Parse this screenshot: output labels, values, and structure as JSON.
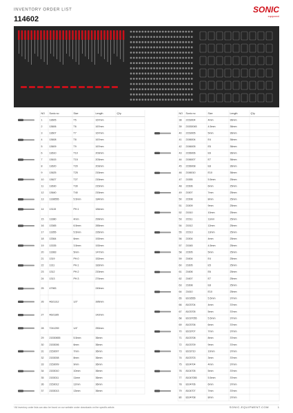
{
  "header": {
    "title": "INVENTORY ORDER LIST",
    "code": "114602",
    "logo": {
      "brand": "SONIC",
      "tagline": "equipment"
    }
  },
  "table": {
    "columns": [
      "NO",
      "Sonic no",
      "Size",
      "Length",
      "Q'ty"
    ],
    "rows": [
      {
        "no": 1,
        "sonic": "13605",
        "size": "T5",
        "length": "167mm"
      },
      {
        "no": 2,
        "sonic": "13606",
        "size": "T6",
        "length": "167mm"
      },
      {
        "no": 3,
        "sonic": "13607",
        "size": "T7",
        "length": "167mm"
      },
      {
        "no": 4,
        "sonic": "13608",
        "size": "T8",
        "length": "167mm"
      },
      {
        "no": 5,
        "sonic": "13609",
        "size": "T9",
        "length": "167mm"
      },
      {
        "no": 6,
        "sonic": "13610",
        "size": "T10",
        "length": "203mm"
      },
      {
        "no": 7,
        "sonic": "13615",
        "size": "T15",
        "length": "203mm"
      },
      {
        "no": 8,
        "sonic": "13620",
        "size": "T20",
        "length": "203mm"
      },
      {
        "no": 9,
        "sonic": "13625",
        "size": "T25",
        "length": "215mm"
      },
      {
        "no": 10,
        "sonic": "13627",
        "size": "T27",
        "length": "215mm"
      },
      {
        "no": 11,
        "sonic": "13630",
        "size": "T30",
        "length": "215mm"
      },
      {
        "no": 12,
        "sonic": "13640",
        "size": "T40",
        "length": "215mm"
      },
      {
        "no": 13,
        "sonic": "1338555",
        "size": "5.5mm",
        "length": "184mm"
      },
      {
        "no": 14,
        "sonic": "13115",
        "size": "PH.1",
        "length": "184mm"
      },
      {
        "no": 15,
        "sonic": "13380",
        "size": "4mm",
        "length": "299mm"
      },
      {
        "no": 16,
        "sonic": "13365",
        "size": "6.5mm",
        "length": "265mm"
      },
      {
        "no": 17,
        "sonic": "13355",
        "size": "5.5mm",
        "length": "226mm"
      },
      {
        "no": 18,
        "sonic": "13364",
        "size": "6mm",
        "length": "192mm"
      },
      {
        "no": 19,
        "sonic": "13335",
        "size": "3.5mm",
        "length": "192mm"
      },
      {
        "no": 20,
        "sonic": "13383",
        "size": "5mm",
        "length": "147mm"
      },
      {
        "no": 21,
        "sonic": "1319",
        "size": "PH.0",
        "length": "152mm"
      },
      {
        "no": 22,
        "sonic": "1311",
        "size": "PH.1",
        "length": "183mm"
      },
      {
        "no": 23,
        "sonic": "1312",
        "size": "PH.2",
        "length": "215mm"
      },
      {
        "no": 24,
        "sonic": "1313",
        "size": "PH.3",
        "length": "274mm"
      },
      {
        "no": 25,
        "sonic": "47983",
        "length": "249mm"
      },
      {
        "no": 26,
        "sonic": "4621312",
        "size": "1/2\"",
        "length": "395mm"
      },
      {
        "no": 27,
        "sonic": "4621165",
        "length": "142mm"
      },
      {
        "no": 28,
        "sonic": "7241259",
        "size": "1/4\"",
        "length": "250mm"
      },
      {
        "no": 29,
        "sonic": "21530655",
        "size": "5.5mm",
        "length": "36mm"
      },
      {
        "no": 30,
        "sonic": "2153006",
        "size": "6mm",
        "length": "36mm"
      },
      {
        "no": 31,
        "sonic": "2153007",
        "size": "7mm",
        "length": "36mm"
      },
      {
        "no": 32,
        "sonic": "2153008",
        "size": "8mm",
        "length": "36mm"
      },
      {
        "no": 33,
        "sonic": "2153009",
        "size": "9mm",
        "length": "36mm"
      },
      {
        "no": 34,
        "sonic": "2153010",
        "size": "10mm",
        "length": "36mm"
      },
      {
        "no": 35,
        "sonic": "2153011",
        "size": "11mm",
        "length": "36mm"
      },
      {
        "no": 36,
        "sonic": "2153012",
        "size": "12mm",
        "length": "36mm"
      },
      {
        "no": 37,
        "sonic": "2153013",
        "size": "13mm",
        "length": "36mm"
      },
      {
        "no": 38,
        "sonic": "2153004",
        "size": "4mm",
        "length": "36mm"
      },
      {
        "no": 39,
        "sonic": "21530045",
        "size": "4.5mm",
        "length": "36mm"
      },
      {
        "no": 40,
        "sonic": "2153005",
        "size": "5mm",
        "length": "36mm"
      },
      {
        "no": 41,
        "sonic": "2156004",
        "size": "E4",
        "length": "36mm"
      },
      {
        "no": 42,
        "sonic": "2156005",
        "size": "E5",
        "length": "36mm"
      },
      {
        "no": 43,
        "sonic": "2156006",
        "size": "E6",
        "length": "36mm"
      },
      {
        "no": 44,
        "sonic": "2156007",
        "size": "E7",
        "length": "36mm"
      },
      {
        "no": 45,
        "sonic": "2156008",
        "size": "E8",
        "length": "36mm"
      },
      {
        "no": 46,
        "sonic": "2156010",
        "size": "E10",
        "length": "36mm"
      },
      {
        "no": 47,
        "sonic": "21555",
        "size": "5.5mm",
        "length": "25mm"
      },
      {
        "no": 48,
        "sonic": "21506",
        "size": "6mm",
        "length": "25mm"
      },
      {
        "no": 49,
        "sonic": "21507",
        "size": "7mm",
        "length": "25mm"
      },
      {
        "no": 50,
        "sonic": "21508",
        "size": "8mm",
        "length": "25mm"
      },
      {
        "no": 51,
        "sonic": "21509",
        "size": "9mm",
        "length": "25mm"
      },
      {
        "no": 52,
        "sonic": "21510",
        "size": "10mm",
        "length": "25mm"
      },
      {
        "no": 53,
        "sonic": "21511",
        "size": "11mm",
        "length": "25mm"
      },
      {
        "no": 54,
        "sonic": "21512",
        "size": "12mm",
        "length": "25mm"
      },
      {
        "no": 55,
        "sonic": "21513",
        "size": "13mm",
        "length": "25mm"
      },
      {
        "no": 56,
        "sonic": "21504",
        "size": "4mm",
        "length": "25mm"
      },
      {
        "no": 57,
        "sonic": "21545",
        "size": "4.5mm",
        "length": "25mm"
      },
      {
        "no": 58,
        "sonic": "21505",
        "size": "5mm",
        "length": "25mm"
      },
      {
        "no": 59,
        "sonic": "21604",
        "size": "E4",
        "length": "25mm"
      },
      {
        "no": 60,
        "sonic": "21605",
        "size": "E5",
        "length": "25mm"
      },
      {
        "no": 61,
        "sonic": "21606",
        "size": "E6",
        "length": "25mm"
      },
      {
        "no": 62,
        "sonic": "21607",
        "size": "E7",
        "length": "25mm"
      },
      {
        "no": 63,
        "sonic": "21608",
        "size": "E8",
        "length": "25mm"
      },
      {
        "no": 64,
        "sonic": "21610",
        "size": "E10",
        "length": "25mm"
      },
      {
        "no": 65,
        "sonic": "8103555",
        "size": "5.5mm",
        "length": "37mm"
      },
      {
        "no": 66,
        "sonic": "8103704",
        "size": "4mm",
        "length": "37mm"
      },
      {
        "no": 67,
        "sonic": "8103705",
        "size": "5mm",
        "length": "37mm"
      },
      {
        "no": 68,
        "sonic": "81037055",
        "size": "5.5mm",
        "length": "37mm"
      },
      {
        "no": 69,
        "sonic": "8103706",
        "size": "6mm",
        "length": "37mm"
      },
      {
        "no": 70,
        "sonic": "8103707",
        "size": "7mm",
        "length": "37mm"
      },
      {
        "no": 71,
        "sonic": "8103708",
        "size": "8mm",
        "length": "37mm"
      },
      {
        "no": 72,
        "sonic": "8103709",
        "size": "9mm",
        "length": "37mm"
      },
      {
        "no": 73,
        "sonic": "8103710",
        "size": "10mm",
        "length": "37mm"
      },
      {
        "no": 74,
        "sonic": "8103703",
        "size": "3mm",
        "length": "37mm"
      },
      {
        "no": 75,
        "sonic": "8104704",
        "size": "4mm",
        "length": "37mm"
      },
      {
        "no": 76,
        "sonic": "8104705",
        "size": "5mm",
        "length": "37mm"
      },
      {
        "no": 77,
        "sonic": "81047055",
        "size": "5.5mm",
        "length": "37mm"
      },
      {
        "no": 78,
        "sonic": "8104706",
        "size": "6mm",
        "length": "37mm"
      },
      {
        "no": 79,
        "sonic": "8104707",
        "size": "7mm",
        "length": "37mm"
      },
      {
        "no": 80,
        "sonic": "8104708",
        "size": "8mm",
        "length": "37mm"
      }
    ]
  },
  "footer": {
    "note": "*All inventory order lists can also be found on our website under downloads on the specific article.",
    "website": "SONIC-EQUIPMENT.COM",
    "page": "1"
  }
}
